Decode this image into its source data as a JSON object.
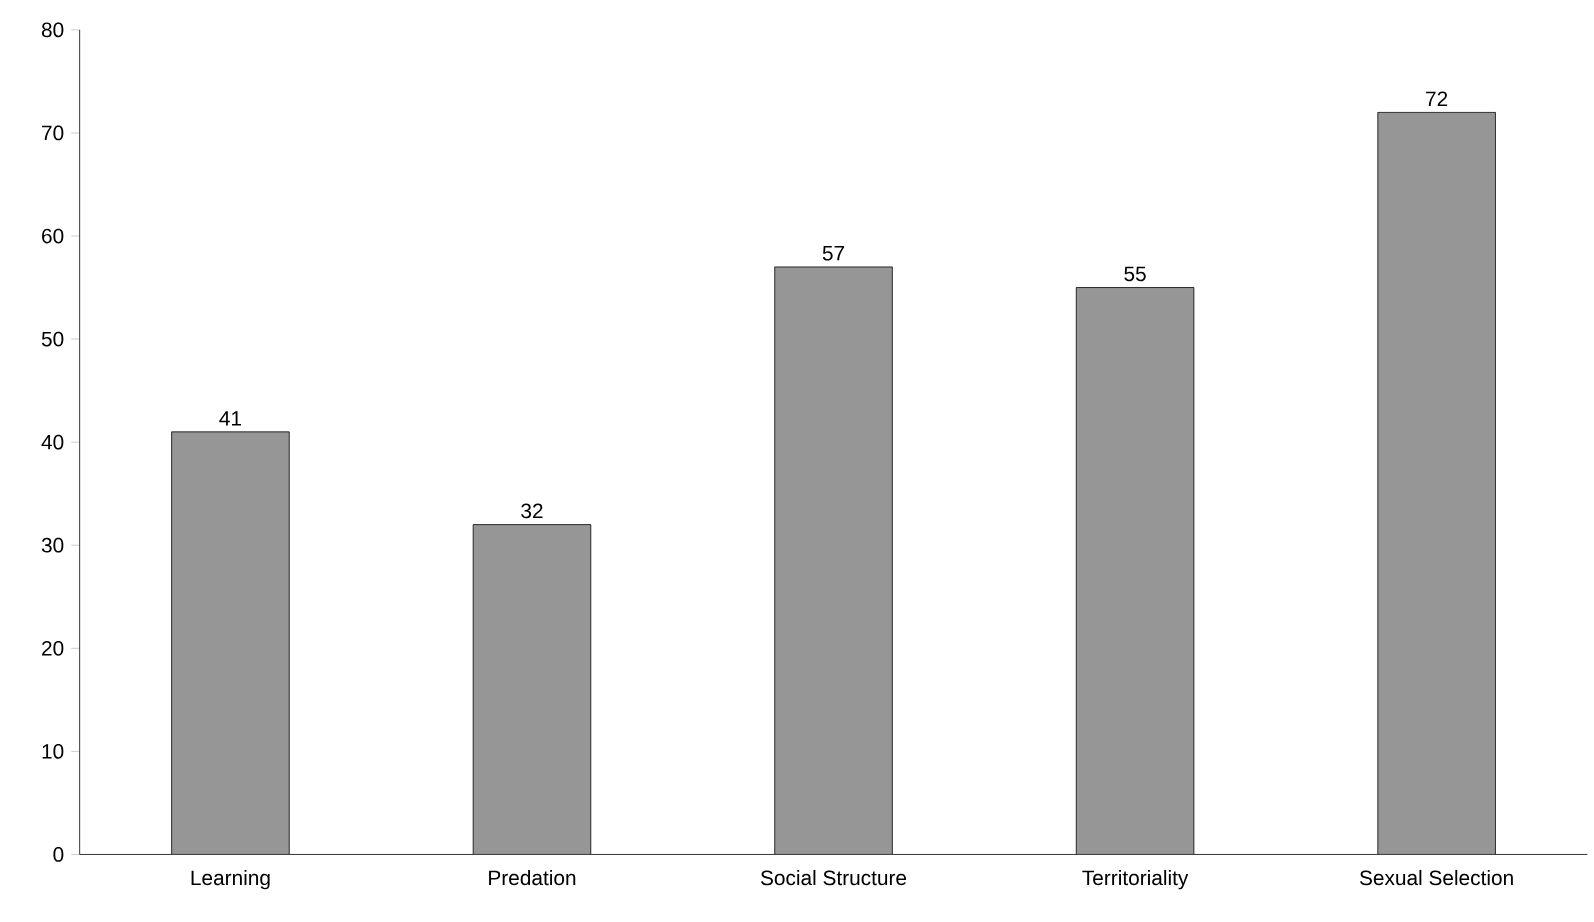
{
  "chart_data": {
    "type": "bar",
    "categories": [
      "Learning",
      "Predation",
      "Social Structure",
      "Territoriality",
      "Sexual Selection"
    ],
    "values": [
      41,
      32,
      57,
      55,
      72
    ],
    "color": "#969696",
    "ylim": [
      0,
      80
    ],
    "yticks": [
      0,
      10,
      20,
      30,
      40,
      50,
      60,
      70,
      80
    ],
    "data_labels": true
  }
}
